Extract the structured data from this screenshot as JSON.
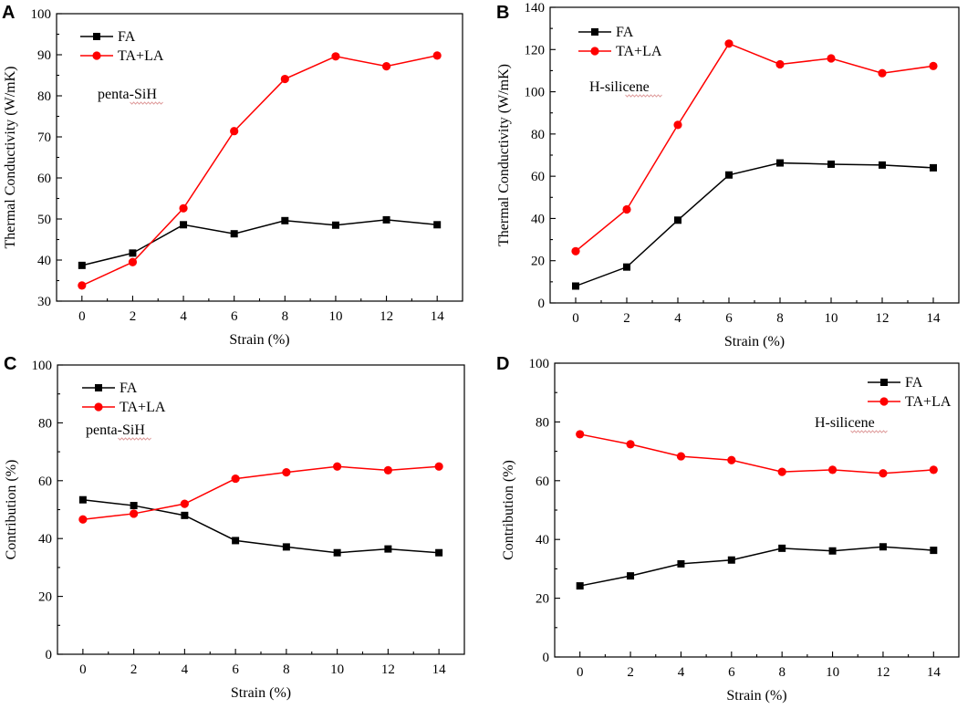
{
  "chart_data": [
    {
      "type": "line",
      "panel": "A",
      "x": [
        0,
        2,
        4,
        6,
        8,
        10,
        12,
        14
      ],
      "xlabel": "Strain (%)",
      "ylabel": "Thermal Conductivity (W/mK)",
      "xlim": [
        -1,
        15
      ],
      "ylim": [
        30,
        100
      ],
      "xticks": [
        0,
        2,
        4,
        6,
        8,
        10,
        12,
        14
      ],
      "yticks": [
        30,
        40,
        50,
        60,
        70,
        80,
        90,
        100
      ],
      "legend_position": "top-left",
      "annotation": "penta-SiH",
      "series": [
        {
          "name": "FA",
          "color": "#000000",
          "marker": "square",
          "values": [
            38.7,
            41.7,
            48.6,
            46.4,
            49.6,
            48.5,
            49.8,
            48.6
          ]
        },
        {
          "name": "TA+LA",
          "color": "#ff0000",
          "marker": "circle",
          "values": [
            33.8,
            39.5,
            52.6,
            71.4,
            84.1,
            89.6,
            87.2,
            89.8
          ]
        }
      ]
    },
    {
      "type": "line",
      "panel": "B",
      "x": [
        0,
        2,
        4,
        6,
        8,
        10,
        12,
        14
      ],
      "xlabel": "Strain (%)",
      "ylabel": "Thermal Conductivity (W/mK)",
      "xlim": [
        -1,
        15
      ],
      "ylim": [
        0,
        140
      ],
      "xticks": [
        0,
        2,
        4,
        6,
        8,
        10,
        12,
        14
      ],
      "yticks": [
        0,
        20,
        40,
        60,
        80,
        100,
        120,
        140
      ],
      "legend_position": "top-left",
      "annotation": "H-silicene",
      "series": [
        {
          "name": "FA",
          "color": "#000000",
          "marker": "square",
          "values": [
            8.0,
            17.0,
            39.2,
            60.6,
            66.3,
            65.7,
            65.3,
            64.0
          ]
        },
        {
          "name": "TA+LA",
          "color": "#ff0000",
          "marker": "circle",
          "values": [
            24.5,
            44.3,
            84.3,
            122.8,
            113.0,
            115.8,
            108.8,
            112.2
          ]
        }
      ]
    },
    {
      "type": "line",
      "panel": "C",
      "x": [
        0,
        2,
        4,
        6,
        8,
        10,
        12,
        14
      ],
      "xlabel": "Strain (%)",
      "ylabel": "Contribution (%)",
      "xlim": [
        -1,
        15
      ],
      "ylim": [
        0,
        100
      ],
      "xticks": [
        0,
        2,
        4,
        6,
        8,
        10,
        12,
        14
      ],
      "yticks": [
        0,
        20,
        40,
        60,
        80,
        100
      ],
      "legend_position": "top-left",
      "annotation": "penta-SiH",
      "series": [
        {
          "name": "FA",
          "color": "#000000",
          "marker": "square",
          "values": [
            53.4,
            51.4,
            48.0,
            39.3,
            37.1,
            35.1,
            36.4,
            35.1
          ]
        },
        {
          "name": "TA+LA",
          "color": "#ff0000",
          "marker": "circle",
          "values": [
            46.6,
            48.6,
            52.0,
            60.7,
            62.9,
            64.9,
            63.6,
            64.9
          ]
        }
      ]
    },
    {
      "type": "line",
      "panel": "D",
      "x": [
        0,
        2,
        4,
        6,
        8,
        10,
        12,
        14
      ],
      "xlabel": "Strain (%)",
      "ylabel": "Contribution (%)",
      "xlim": [
        -1,
        15
      ],
      "ylim": [
        0,
        100
      ],
      "xticks": [
        0,
        2,
        4,
        6,
        8,
        10,
        12,
        14
      ],
      "yticks": [
        0,
        20,
        40,
        60,
        80,
        100
      ],
      "legend_position": "top-right",
      "annotation": "H-silicene",
      "series": [
        {
          "name": "FA",
          "color": "#000000",
          "marker": "square",
          "values": [
            24.2,
            27.6,
            31.7,
            33.0,
            37.0,
            36.1,
            37.5,
            36.3
          ]
        },
        {
          "name": "TA+LA",
          "color": "#ff0000",
          "marker": "circle",
          "values": [
            75.8,
            72.4,
            68.3,
            67.0,
            63.0,
            63.7,
            62.5,
            63.7
          ]
        }
      ]
    }
  ]
}
